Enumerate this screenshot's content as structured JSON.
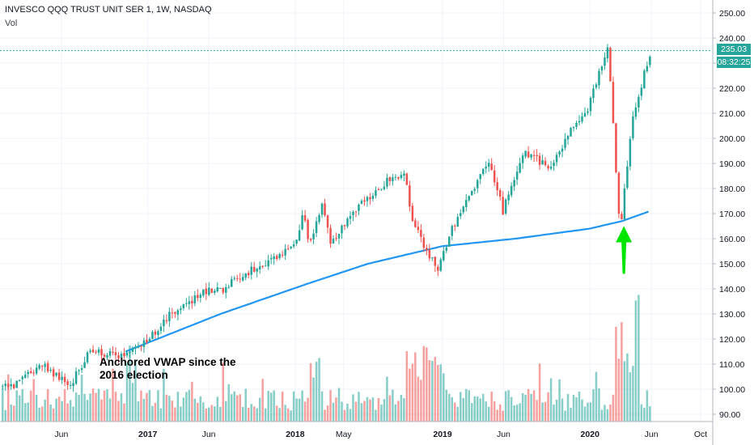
{
  "header": {
    "title": "INVESCO QQQ TRUST UNIT SER 1, 1W, NASDAQ",
    "vol_label": "Vol"
  },
  "annotation": {
    "line1": "Anchored VWAP since the",
    "line2": "2016 election"
  },
  "price_tags": {
    "last_price": "235.03",
    "countdown": "08:32:25"
  },
  "colors": {
    "up": "#26a69a",
    "down": "#ef5350",
    "vwap": "#2196f3",
    "arrow": "#00e600",
    "last_price_line": "#26a69a"
  },
  "chart_data": {
    "type": "candlestick",
    "symbol": "QQQ",
    "interval": "1W",
    "y_axis": {
      "side": "right",
      "ticks": [
        "250.00",
        "240.00",
        "230.00",
        "220.00",
        "210.00",
        "200.00",
        "190.00",
        "180.00",
        "170.00",
        "160.00",
        "150.00",
        "140.00",
        "130.00",
        "120.00",
        "110.00",
        "100.00",
        "90.00"
      ],
      "range": [
        86,
        256
      ]
    },
    "x_axis": {
      "ticks": [
        "Jun",
        "2017",
        "Jun",
        "2018",
        "May",
        "2019",
        "Jun",
        "2020",
        "Jun",
        "Oct"
      ]
    },
    "price_anchors": [
      [
        "2016-02-01",
        101
      ],
      [
        "2016-04-15",
        110
      ],
      [
        "2016-06-27",
        102
      ],
      [
        "2016-08-15",
        115
      ],
      [
        "2016-11-07",
        113
      ],
      [
        "2016-12-31",
        119
      ],
      [
        "2017-03-01",
        130
      ],
      [
        "2017-06-09",
        140
      ],
      [
        "2017-06-30",
        139
      ],
      [
        "2017-09-01",
        146
      ],
      [
        "2017-12-31",
        156
      ],
      [
        "2018-01-26",
        170
      ],
      [
        "2018-02-09",
        156
      ],
      [
        "2018-03-12",
        175
      ],
      [
        "2018-04-02",
        158
      ],
      [
        "2018-06-01",
        171
      ],
      [
        "2018-08-31",
        185
      ],
      [
        "2018-10-01",
        186
      ],
      [
        "2018-10-26",
        165
      ],
      [
        "2018-12-24",
        147
      ],
      [
        "2019-01-31",
        165
      ],
      [
        "2019-04-30",
        192
      ],
      [
        "2019-06-03",
        171
      ],
      [
        "2019-07-26",
        195
      ],
      [
        "2019-10-01",
        188
      ],
      [
        "2019-11-29",
        206
      ],
      [
        "2019-12-31",
        212
      ],
      [
        "2020-02-19",
        237
      ],
      [
        "2020-03-16",
        170
      ],
      [
        "2020-03-23",
        168
      ],
      [
        "2020-04-17",
        206
      ],
      [
        "2020-05-29",
        233
      ]
    ],
    "vwap_anchors": [
      [
        "2016-11-07",
        115
      ],
      [
        "2017-06-30",
        130
      ],
      [
        "2018-01-31",
        142
      ],
      [
        "2018-06-30",
        150
      ],
      [
        "2018-12-31",
        157
      ],
      [
        "2019-06-30",
        160
      ],
      [
        "2019-12-31",
        164
      ],
      [
        "2020-03-20",
        167
      ],
      [
        "2020-05-29",
        171
      ]
    ],
    "last_price": 235.03,
    "volume_pane": {
      "label": "Vol"
    },
    "annotation_arrow": {
      "date": "2020-03-23",
      "from_price": 146,
      "to_price": 165,
      "direction": "up"
    }
  }
}
